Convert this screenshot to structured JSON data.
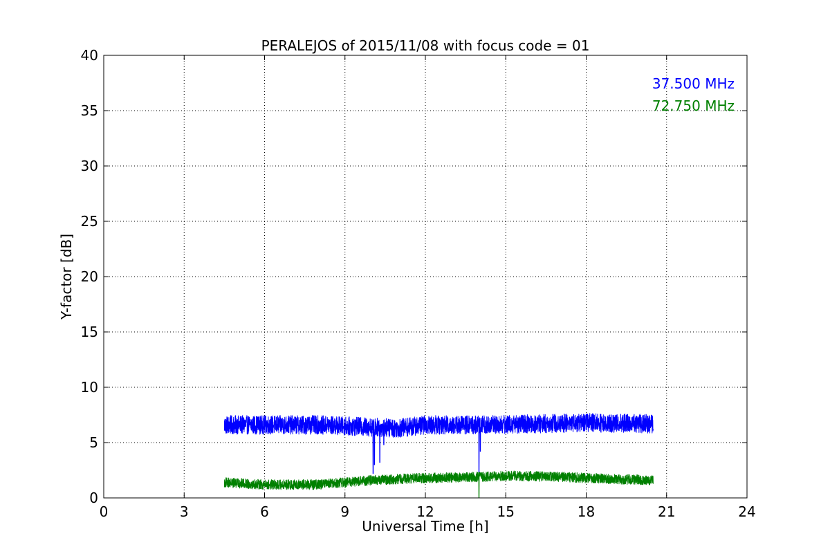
{
  "chart_data": {
    "type": "line",
    "title": "PERALEJOS of 2015/11/08 with focus code = 01",
    "xlabel": "Universal Time [h]",
    "ylabel": "Y-factor [dB]",
    "xlim": [
      0,
      24
    ],
    "ylim": [
      0,
      40
    ],
    "xticks": [
      0,
      3,
      6,
      9,
      12,
      15,
      18,
      21,
      24
    ],
    "yticks": [
      0,
      5,
      10,
      15,
      20,
      25,
      30,
      35,
      40
    ],
    "grid": true,
    "legend_position": "top-right",
    "series": [
      {
        "name": "37.500 MHz",
        "color": "#0000ff",
        "x_range": [
          4.5,
          20.5
        ],
        "baseline": [
          [
            4.5,
            6.6
          ],
          [
            8.0,
            6.6
          ],
          [
            10.0,
            6.4
          ],
          [
            11.0,
            6.3
          ],
          [
            12.0,
            6.6
          ],
          [
            14.0,
            6.6
          ],
          [
            16.0,
            6.7
          ],
          [
            18.0,
            6.8
          ],
          [
            20.5,
            6.7
          ]
        ],
        "noise_amplitude": 0.85,
        "dips": [
          [
            10.05,
            2.2
          ],
          [
            10.1,
            3.0
          ],
          [
            10.3,
            3.2
          ],
          [
            10.45,
            4.8
          ],
          [
            14.0,
            2.3
          ],
          [
            14.05,
            4.2
          ]
        ]
      },
      {
        "name": "72.750 MHz",
        "color": "#008000",
        "x_range": [
          4.5,
          20.5
        ],
        "baseline": [
          [
            4.5,
            1.4
          ],
          [
            6.0,
            1.2
          ],
          [
            8.0,
            1.2
          ],
          [
            9.0,
            1.4
          ],
          [
            10.0,
            1.6
          ],
          [
            12.0,
            1.8
          ],
          [
            14.0,
            1.9
          ],
          [
            15.0,
            2.0
          ],
          [
            17.0,
            1.9
          ],
          [
            19.0,
            1.7
          ],
          [
            20.5,
            1.6
          ]
        ],
        "noise_amplitude": 0.45,
        "dips": [
          [
            14.0,
            0.0
          ]
        ]
      }
    ]
  }
}
